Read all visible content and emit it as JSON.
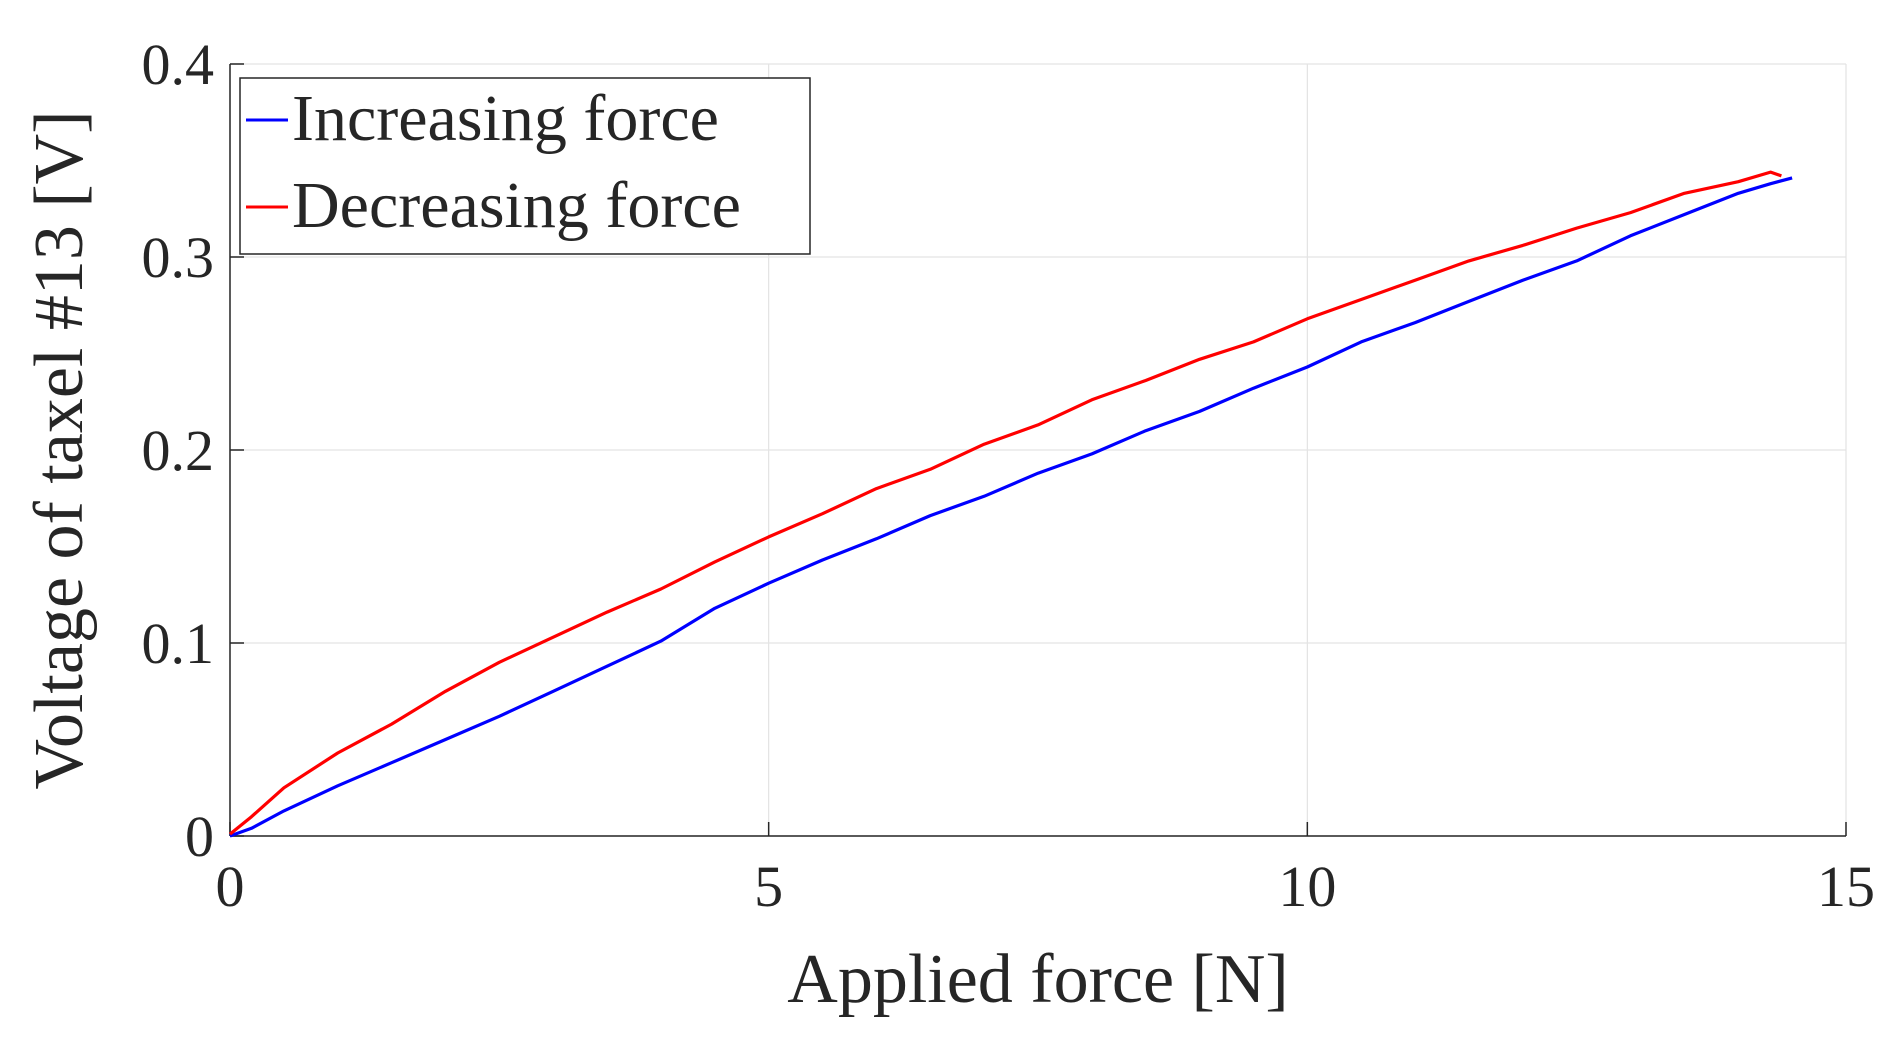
{
  "chart_data": {
    "type": "line",
    "title": "",
    "xlabel": "Applied force [N]",
    "ylabel": "Voltage of taxel #13 [V]",
    "xlim": [
      0,
      15
    ],
    "ylim": [
      0,
      0.4
    ],
    "xticks": [
      0,
      5,
      10,
      15
    ],
    "xtick_labels": [
      "0",
      "5",
      "10",
      "15"
    ],
    "yticks": [
      0,
      0.1,
      0.2,
      0.3,
      0.4
    ],
    "ytick_labels": [
      "0",
      "0.1",
      "0.2",
      "0.3",
      "0.4"
    ],
    "grid": true,
    "legend_position": "top-left",
    "series": [
      {
        "name": "Increasing force",
        "color": "#0000ff",
        "x": [
          0,
          0.2,
          0.5,
          1.0,
          1.5,
          2.0,
          2.5,
          3.0,
          3.5,
          4.0,
          4.5,
          5.0,
          5.5,
          6.0,
          6.5,
          7.0,
          7.5,
          8.0,
          8.5,
          9.0,
          9.5,
          10.0,
          10.5,
          11.0,
          11.5,
          12.0,
          12.5,
          13.0,
          13.5,
          14.0,
          14.3,
          14.5
        ],
        "y": [
          0.0,
          0.004,
          0.013,
          0.026,
          0.038,
          0.05,
          0.062,
          0.075,
          0.088,
          0.101,
          0.118,
          0.131,
          0.143,
          0.154,
          0.166,
          0.176,
          0.188,
          0.198,
          0.21,
          0.22,
          0.232,
          0.243,
          0.256,
          0.266,
          0.277,
          0.288,
          0.298,
          0.311,
          0.322,
          0.333,
          0.338,
          0.341
        ]
      },
      {
        "name": "Decreasing force",
        "color": "#ff0000",
        "x": [
          14.4,
          14.3,
          14.0,
          13.5,
          13.0,
          12.5,
          12.0,
          11.5,
          11.0,
          10.5,
          10.0,
          9.5,
          9.0,
          8.5,
          8.0,
          7.5,
          7.0,
          6.5,
          6.0,
          5.5,
          5.0,
          4.5,
          4.0,
          3.5,
          3.0,
          2.5,
          2.0,
          1.5,
          1.0,
          0.5,
          0.2,
          0
        ],
        "y": [
          0.342,
          0.344,
          0.339,
          0.333,
          0.323,
          0.315,
          0.306,
          0.298,
          0.288,
          0.278,
          0.268,
          0.256,
          0.247,
          0.236,
          0.226,
          0.213,
          0.203,
          0.19,
          0.18,
          0.167,
          0.155,
          0.142,
          0.128,
          0.116,
          0.103,
          0.09,
          0.075,
          0.058,
          0.043,
          0.025,
          0.01,
          0.001
        ]
      }
    ]
  }
}
